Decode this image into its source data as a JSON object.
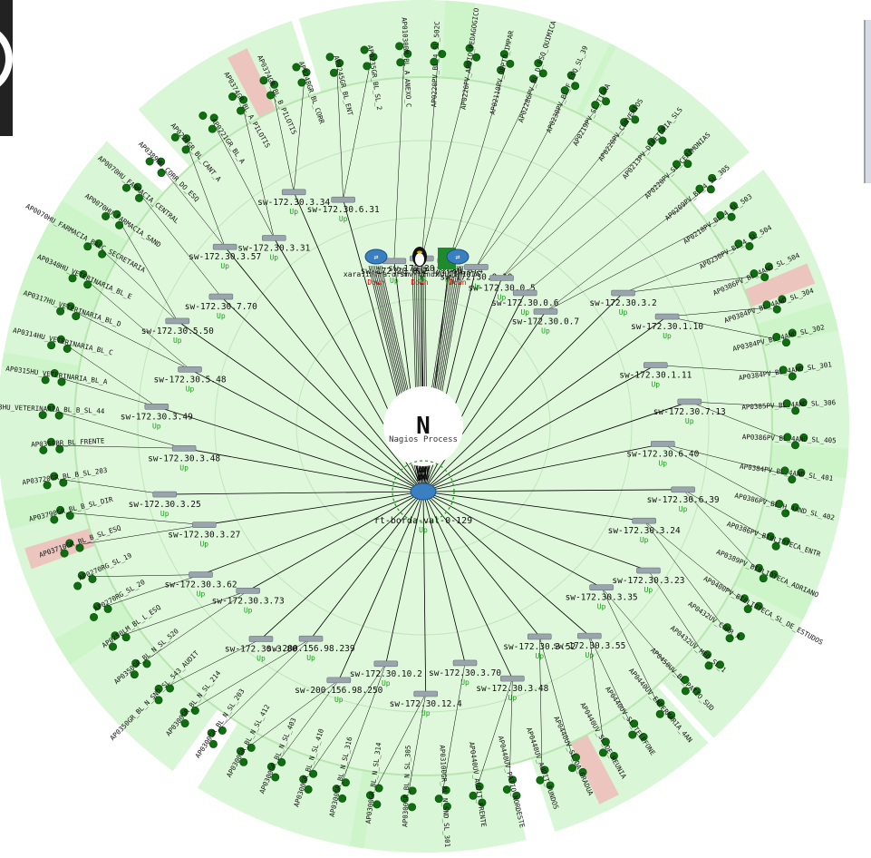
{
  "app": {
    "title": "Nagios Process",
    "logo_letter": "N"
  },
  "colors": {
    "background": "#ffffff",
    "disc": "#dff7da",
    "disc_border": "#b8e6b0",
    "band": "#c9f3c4",
    "band_down": "#f0b8b8",
    "edge": "#000000",
    "up": "#1a9d1a",
    "down": "#e00000",
    "host_icon": "#0f6e0f",
    "switch_icon": "#9aa4ad",
    "router_icon": "#3a7fc1"
  },
  "core_router": {
    "name": "rt-borda-val-0-129",
    "status": "Up"
  },
  "center_nodes": [
    {
      "name": "xara.infra.ufsm",
      "status": "Down",
      "icon": "router-icon"
    },
    {
      "name": "srv-linux",
      "status": "Down",
      "icon": "linux-icon"
    },
    {
      "name": "MULTIMIDIA",
      "status": "Down",
      "icon": "router-icon"
    }
  ],
  "switches": [
    {
      "name": "sw-172.30.0.2",
      "status": "Up"
    },
    {
      "name": "sw-172.30.0.3",
      "status": "Up"
    },
    {
      "name": "sw-172.30.0.4",
      "status": "Up"
    },
    {
      "name": "sw-172.30.0.10",
      "status": "Up"
    },
    {
      "name": "sw-172.30.0.5",
      "status": "Up"
    },
    {
      "name": "sw-172.30.0.6",
      "status": "Up"
    },
    {
      "name": "sw-172.30.0.7",
      "status": "Up"
    },
    {
      "name": "sw-172.30.3.2",
      "status": "Up"
    },
    {
      "name": "sw-172.30.1.10",
      "status": "Up"
    },
    {
      "name": "sw-172.30.1.11",
      "status": "Up"
    },
    {
      "name": "sw-172.30.7.13",
      "status": "Up"
    },
    {
      "name": "sw-172.30.6.40",
      "status": "Up"
    },
    {
      "name": "sw-172.30.6.39",
      "status": "Up"
    },
    {
      "name": "sw-172.30.3.24",
      "status": "Up"
    },
    {
      "name": "sw-172.30.3.23",
      "status": "Up"
    },
    {
      "name": "sw-172.30.3.35",
      "status": "Up"
    },
    {
      "name": "sw-172.30.3.55",
      "status": "Up"
    },
    {
      "name": "sw-172.30.3.52",
      "status": "Up"
    },
    {
      "name": "sw-172.30.3.48",
      "status": "Up"
    },
    {
      "name": "sw-172.30.3.70",
      "status": "Up"
    },
    {
      "name": "sw-172.30.12.4",
      "status": "Up"
    },
    {
      "name": "sw-172.30.10.2",
      "status": "Up"
    },
    {
      "name": "sw-200.156.98.250",
      "status": "Up"
    },
    {
      "name": "sw-200.156.98.239",
      "status": "Up"
    },
    {
      "name": "sw-172.30.3.80",
      "status": "Up"
    },
    {
      "name": "sw-172.30.3.73",
      "status": "Up"
    },
    {
      "name": "sw-172.30.3.62",
      "status": "Up"
    },
    {
      "name": "sw-172.30.3.27",
      "status": "Up"
    },
    {
      "name": "sw-172.30.3.25",
      "status": "Up"
    },
    {
      "name": "sw-172.30.3.48",
      "status": "Up"
    },
    {
      "name": "sw-172.30.3.49",
      "status": "Up"
    },
    {
      "name": "sw-172.30.5.48",
      "status": "Up"
    },
    {
      "name": "sw-172.30.5.50",
      "status": "Up"
    },
    {
      "name": "sw-172.30.7.70",
      "status": "Up"
    },
    {
      "name": "sw-172.30.3.57",
      "status": "Up"
    },
    {
      "name": "sw-172.30.3.31",
      "status": "Up"
    },
    {
      "name": "sw-172.30.3.34",
      "status": "Up"
    },
    {
      "name": "sw-172.30.6.31",
      "status": "Up"
    }
  ],
  "access_points": [
    "AP01030BM_BL_A_ANEXO_C",
    "AP0220PV_BL_4_SL_502C",
    "AP0220PV_APOIO_PEDAGOGICO",
    "AP02110PV_DEPTO_IMPAR",
    "AP0228GPV_BL_D_ESQ_QUIMICA",
    "AP0230PV_BL_F_ESQ_SL_39",
    "AP0219PV_SL_TIGRA",
    "AP0220PV_CONVENIOS",
    "AP0213PV_DIRETORIA_SLS",
    "AP0220PV_SL_CERIMONIAS",
    "AP0209PV_BL_4_SL_305",
    "AP0218PV_BL_4_SL_503",
    "AP0230PV_BL_4_SL_504",
    "AP0386PV_BL_4AND_SL_504",
    "AP0384PV_BL_4AND_SL_304",
    "AP0384PV_BL_4AND_SL_302",
    "AP0384PV_BL_4AND_SL_301",
    "AP0385PV_BL_4AND_SL_306",
    "AP0386PV_BL_4AND_SL_405",
    "AP0384PV_BL_4AND_SL_401",
    "AP0386PV_BL_H_4AND_SL_402",
    "AP0386PV_BIBLIOTECA_ENTR",
    "AP0389PV_BIBLIOTECA_ADRIANO",
    "AP0400PV_BIBLIOTECA_SL_DE_ESTUDOS",
    "AP0432UV_CORR_A",
    "AP0432UV_MED_SL_1",
    "AP0450UV_BL_PATIO_SUD",
    "AP0440UV_ENFERMARIA_4AN",
    "AP0440UV_SL_TELEFONE",
    "AP0440UV_SL_DE_REUNIA",
    "AP0440UV_SL_DA_GRADUA",
    "AP0440UV_AUDIT_FUNDOS",
    "AP0440UV_PATIO_NORDESTE",
    "AP0440UV_AUDIT_FRENTE",
    "AP03100GR_BL_N_SND_SL_301",
    "AP0300GR_BL_N_SL_305",
    "AP0300GR_BL_N_SL_314",
    "AP0300GR_BL_N_SL_316",
    "AP0300GR_BL_N_SL_410",
    "AP0300GR_BL_N_SL_403",
    "AP0300GR_BL_N_SL_412",
    "AP0300GR_BL_N_SL_203",
    "AP0300GR_BL_N_SL_214",
    "AP0350GR_BL_N_SND_SL_543_AUDIT",
    "AP0350GR_BL_N_SL_520",
    "AP0250LM_BL_L_ESQ",
    "AP0270RG_SL_20",
    "AP0270RG_SL_19",
    "AP03710GR_BL_B_SL_ESQ",
    "AP03790GR_BL_B_SL_DIR",
    "AP03720GR_BL_B_SL_203",
    "AP0369BR_BL_FRENTE",
    "AP0303HU_VETERINARIA_BL_B_SL_44",
    "AP0315HU_VETERINARIA_BL_A",
    "AP0314HU_VETERINARIA_BL_C",
    "AP0317HU_VETERINARIA_BL_D",
    "AP0340HU_VETERINARIA_BL_E",
    "AP0070HU_FARMACIA_BALC_SECRETARIA",
    "AP0070HU_FARMACIA_SAND",
    "AP0070HU_FARMACIA_CENTRAL",
    "AP0389HU_CORR_DO_ESQ",
    "AP0226GR_BL_CANT_A",
    "AP0221GR_BL_A",
    "AP0374GR_BL_A_PILOTIS",
    "AP0374GR_BL_B_PILOTIS",
    "AP0248GR_BL_CORR",
    "AP0245GR_BL_ENT",
    "AP0235GR_BL_SL_2"
  ],
  "status_labels": {
    "up": "Up",
    "down": "Down"
  }
}
